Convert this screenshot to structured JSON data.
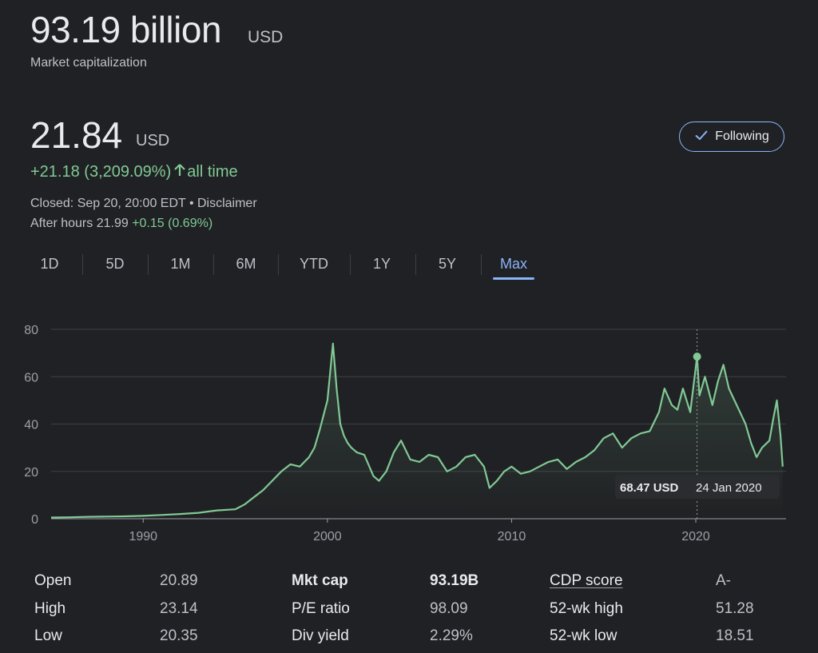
{
  "market_cap": {
    "value": "93.19 billion",
    "currency": "USD",
    "label": "Market capitalization"
  },
  "quote": {
    "price": "21.84",
    "currency": "USD",
    "change": "+21.18 (3,209.09%)",
    "change_suffix": "all time",
    "closed": "Closed: Sep 20, 20:00 EDT • Disclaimer",
    "after_hours_label": "After hours 21.99",
    "after_hours_change": "+0.15 (0.69%)"
  },
  "follow_button": {
    "label": "Following",
    "icon": "check-icon"
  },
  "ranges": [
    "1D",
    "5D",
    "1M",
    "6M",
    "YTD",
    "1Y",
    "5Y",
    "Max"
  ],
  "active_range": "Max",
  "colors": {
    "positive": "#81c995",
    "accent": "#8ab4f8",
    "background": "#202124"
  },
  "chart_data": {
    "type": "line",
    "x_ticks": [
      "1990",
      "2000",
      "2010",
      "2020"
    ],
    "y_ticks": [
      "0",
      "20",
      "40",
      "60",
      "80"
    ],
    "xlim": [
      1985,
      2024.9
    ],
    "ylim": [
      0,
      80
    ],
    "grid": true,
    "series": [
      {
        "x": [
          1985,
          1986,
          1987,
          1988,
          1989,
          1990,
          1991,
          1992,
          1993,
          1994,
          1995,
          1995.5,
          1996,
          1996.5,
          1997,
          1997.5,
          1998,
          1998.5,
          1999,
          1999.3,
          1999.6,
          2000,
          2000.3,
          2000.5,
          2000.7,
          2000.9,
          2001.1,
          2001.3,
          2001.6,
          2002,
          2002.5,
          2002.8,
          2003.2,
          2003.6,
          2004,
          2004.5,
          2005,
          2005.5,
          2006,
          2006.5,
          2007,
          2007.5,
          2008,
          2008.5,
          2008.8,
          2009.2,
          2009.6,
          2010,
          2010.5,
          2011,
          2011.5,
          2012,
          2012.5,
          2013,
          2013.5,
          2014,
          2014.5,
          2015,
          2015.5,
          2016,
          2016.5,
          2017,
          2017.5,
          2018,
          2018.3,
          2018.7,
          2019,
          2019.3,
          2019.7,
          2020.07,
          2020.2,
          2020.5,
          2020.9,
          2021.2,
          2021.5,
          2021.8,
          2022.1,
          2022.4,
          2022.7,
          2023,
          2023.3,
          2023.6,
          2024,
          2024.2,
          2024.4,
          2024.6,
          2024.72
        ],
        "y": [
          0.5,
          0.6,
          0.8,
          0.9,
          1.0,
          1.2,
          1.6,
          2,
          2.5,
          3.5,
          4,
          6,
          9,
          12,
          16,
          20,
          23,
          22,
          26,
          30,
          38,
          50,
          74,
          55,
          40,
          35,
          32,
          30,
          28,
          27,
          18,
          16,
          20,
          28,
          33,
          25,
          24,
          27,
          26,
          20,
          22,
          26,
          27,
          22,
          13,
          16,
          20,
          22,
          19,
          20,
          22,
          24,
          25,
          21,
          24,
          26,
          29,
          34,
          36,
          30,
          34,
          36,
          37,
          45,
          55,
          48,
          46,
          55,
          45,
          68.47,
          52,
          60,
          48,
          58,
          65,
          55,
          50,
          45,
          40,
          32,
          26,
          30,
          33,
          42,
          50,
          35,
          22
        ]
      }
    ],
    "tooltip": {
      "value": "68.47 USD",
      "date": "24 Jan 2020"
    }
  },
  "stats": {
    "open": {
      "label": "Open",
      "value": "20.89"
    },
    "high": {
      "label": "High",
      "value": "23.14"
    },
    "low": {
      "label": "Low",
      "value": "20.35"
    },
    "mkt_cap": {
      "label": "Mkt cap",
      "value": "93.19B"
    },
    "pe_ratio": {
      "label": "P/E ratio",
      "value": "98.09"
    },
    "div_yield": {
      "label": "Div yield",
      "value": "2.29%"
    },
    "cdp_score": {
      "label": "CDP score",
      "value": "A-"
    },
    "wk52_high": {
      "label": "52-wk high",
      "value": "51.28"
    },
    "wk52_low": {
      "label": "52-wk low",
      "value": "18.51"
    }
  }
}
